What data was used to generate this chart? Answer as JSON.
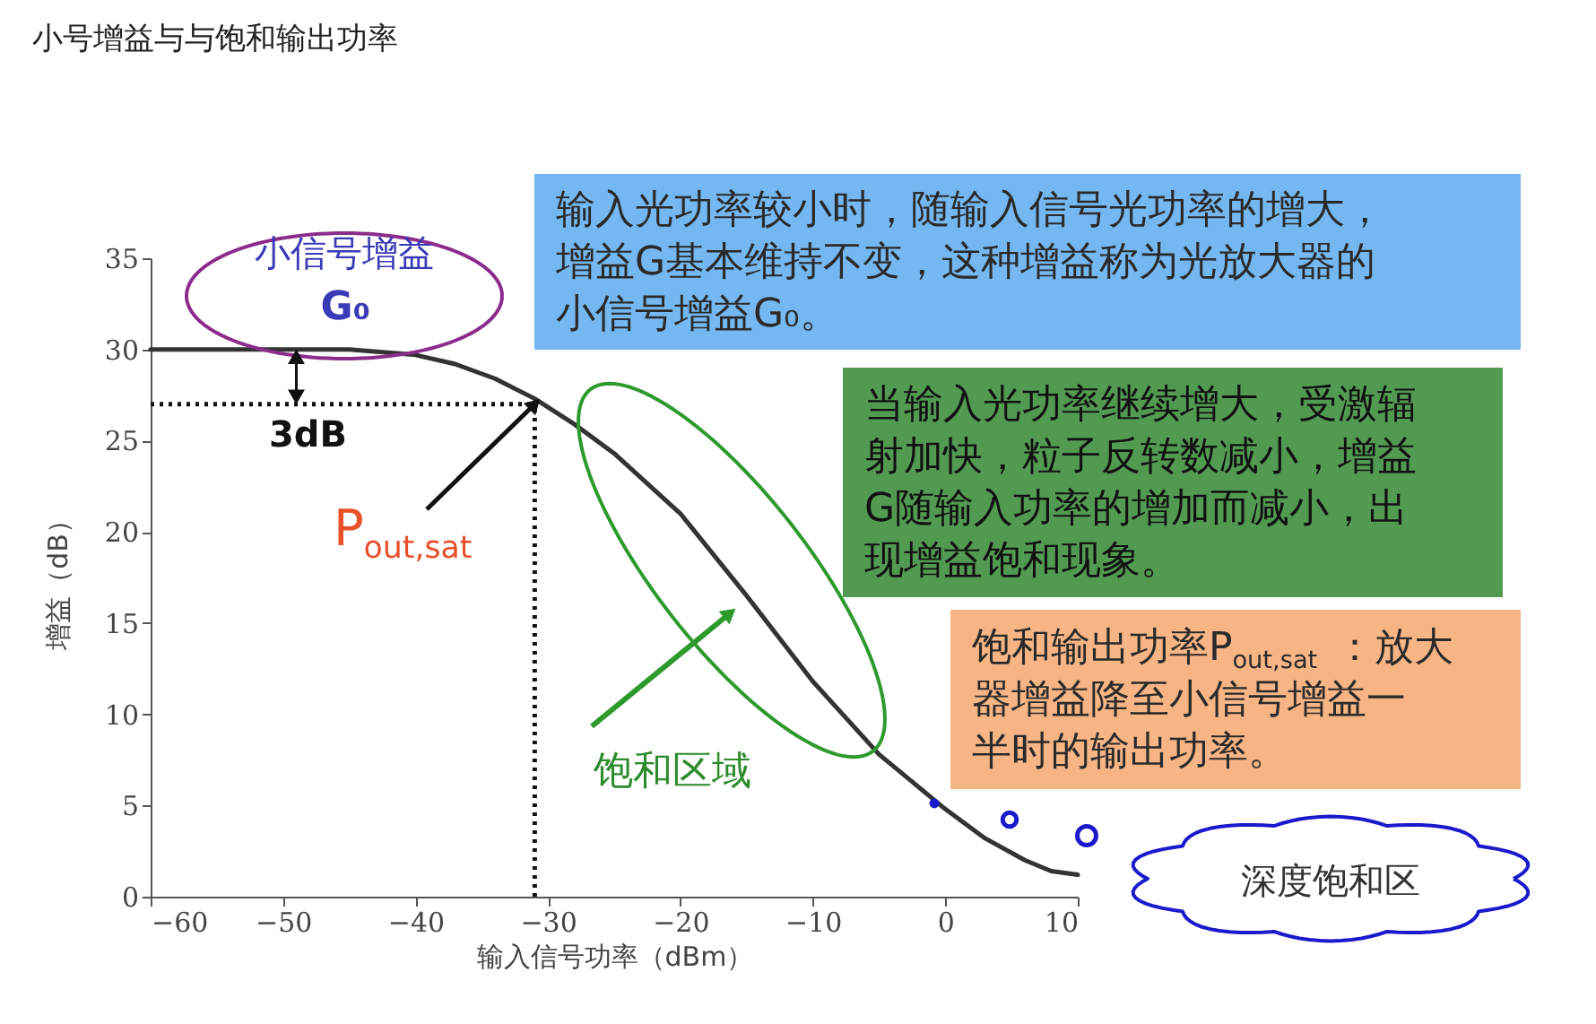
{
  "chart_data": {
    "type": "line",
    "title": "小号增益与与饱和输出功率",
    "xlabel": "输入信号功率（dBm）",
    "ylabel": "增益（dB）",
    "x": [
      -60,
      -55,
      -50,
      -45,
      -40,
      -37,
      -34,
      -31,
      -28,
      -25,
      -20,
      -15,
      -10,
      -5,
      0,
      3,
      6,
      8,
      10
    ],
    "series": [
      {
        "color": "#333333",
        "values": [
          30,
          30,
          30,
          30,
          29.7,
          29.2,
          28.4,
          27.3,
          25.9,
          24.3,
          21,
          16.5,
          11.8,
          7.8,
          4.8,
          3.2,
          2,
          1.4,
          1.2
        ]
      }
    ],
    "xlim": [
      -60,
      10
    ],
    "ylim": [
      0,
      35
    ],
    "xticks": [
      -60,
      -50,
      -40,
      -30,
      -20,
      -10,
      0,
      10
    ],
    "yticks": [
      0,
      5,
      10,
      15,
      20,
      25,
      30,
      35
    ],
    "grid": false,
    "legend": false,
    "marker": "none",
    "line_style": "solid",
    "ref_lines": [
      {
        "axis": "y",
        "value": 27,
        "color": "#111111",
        "line_style": "dotted"
      },
      {
        "axis": "x",
        "value": -31,
        "color": "#111111",
        "line_style": "dotted"
      }
    ],
    "annotations": [
      "小信号增益",
      "G₀",
      {
        "text": "3dB",
        "x": -49,
        "y": 27
      },
      {
        "text": "P$_{out,sat}$",
        "x": -31,
        "y": 27
      },
      "饱和区域",
      "输入光功率较小时，随输入信号光功率的增大，增益G基本维持不变，这种增益称为光放大器的小信号增益G₀。",
      "当输入光功率继续增大，受激辐射加快，粒子反转数减小，增益G随输入功率的增加而减小，出现增益饱和现象。",
      "饱和输出功率P$_{out,sat}$：放大器增益降至小信号增益一半时的输出功率。",
      "深度饱和区"
    ]
  }
}
